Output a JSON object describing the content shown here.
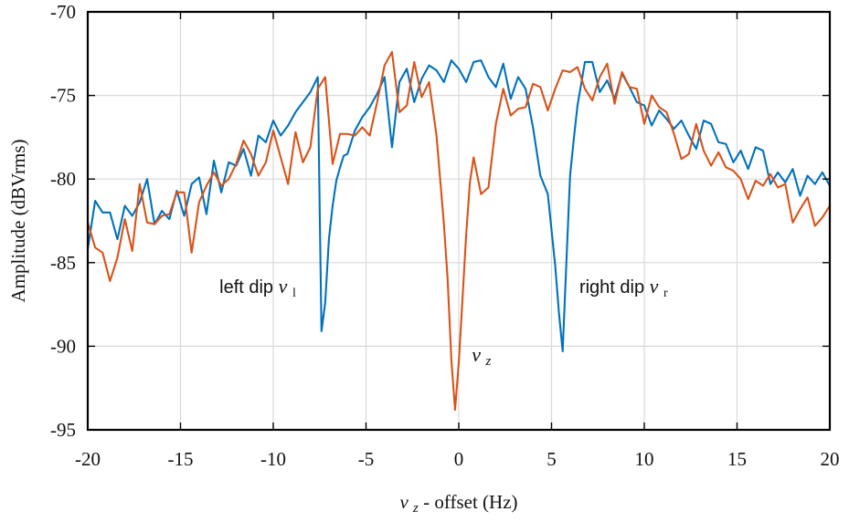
{
  "chart_data": {
    "type": "line",
    "title": "",
    "xlabel": {
      "main": "ν",
      "sub": "z",
      "suffix": " - offset (Hz)"
    },
    "ylabel": "Amplitude (dBVrms)",
    "xlim": [
      -20,
      20
    ],
    "ylim": [
      -95,
      -70
    ],
    "grid": true,
    "legend": "none",
    "x_ticks": [
      "-20",
      "-15",
      "-10",
      "-5",
      "0",
      "5",
      "10",
      "15",
      "20"
    ],
    "y_ticks": [
      "-70",
      "-75",
      "-80",
      "-85",
      "-90",
      "-95"
    ],
    "colors": {
      "blue": "#0072bd",
      "orange": "#d95319",
      "grid": "#d9d9d9",
      "axis": "#000000"
    },
    "annotations": {
      "left": {
        "text": "left dip ",
        "symbol": "ν",
        "sub": "l"
      },
      "center": {
        "symbol": "ν",
        "sub": "z"
      },
      "right": {
        "text": "right dip ",
        "symbol": "ν",
        "sub": "r"
      }
    },
    "series": [
      {
        "color": "#0072bd",
        "x": [
          -20,
          -19.6,
          -19.2,
          -18.8,
          -18.4,
          -18,
          -17.6,
          -17.2,
          -16.8,
          -16.4,
          -16,
          -15.6,
          -15.2,
          -14.8,
          -14.4,
          -14,
          -13.6,
          -13.2,
          -12.8,
          -12.4,
          -12,
          -11.6,
          -11.2,
          -10.8,
          -10.4,
          -10,
          -9.6,
          -9.2,
          -8.8,
          -8.4,
          -8,
          -7.6,
          -7.4,
          -7.2,
          -7.0,
          -6.8,
          -6.6,
          -6.4,
          -6.2,
          -6.0,
          -5.6,
          -5.2,
          -4.8,
          -4.4,
          -4.0,
          -3.6,
          -3.2,
          -2.8,
          -2.4,
          -2.0,
          -1.6,
          -1.2,
          -0.8,
          -0.4,
          0,
          0.4,
          0.8,
          1.2,
          1.6,
          2.0,
          2.4,
          2.8,
          3.2,
          3.6,
          4.0,
          4.4,
          4.8,
          5.2,
          5.4,
          5.6,
          5.8,
          6.0,
          6.2,
          6.4,
          6.8,
          7.2,
          7.6,
          8.0,
          8.4,
          8.8,
          9.2,
          9.6,
          10.0,
          10.4,
          10.8,
          11.2,
          11.6,
          12.0,
          12.4,
          12.8,
          13.2,
          13.6,
          14.0,
          14.4,
          14.8,
          15.2,
          15.6,
          16.0,
          16.4,
          16.8,
          17.2,
          17.6,
          18.0,
          18.4,
          18.8,
          19.2,
          19.6,
          20
        ],
        "y": [
          -84.2,
          -81.3,
          -82.0,
          -82.0,
          -83.6,
          -81.6,
          -82.2,
          -81.4,
          -80.0,
          -82.7,
          -81.9,
          -82.4,
          -80.7,
          -82.2,
          -80.3,
          -79.9,
          -82.1,
          -78.9,
          -80.8,
          -79.0,
          -79.2,
          -78.2,
          -79.8,
          -77.4,
          -77.8,
          -76.5,
          -77.4,
          -76.8,
          -76.0,
          -75.4,
          -74.8,
          -73.9,
          -89.1,
          -87.4,
          -83.6,
          -81.6,
          -80.1,
          -79.3,
          -78.6,
          -78.5,
          -77.1,
          -76.3,
          -75.7,
          -74.9,
          -73.9,
          -78.1,
          -74.2,
          -73.4,
          -75.4,
          -74.0,
          -73.2,
          -73.5,
          -74.2,
          -72.9,
          -73.4,
          -74.2,
          -73.0,
          -72.9,
          -73.9,
          -74.5,
          -73.1,
          -75.2,
          -73.9,
          -74.6,
          -76.9,
          -79.8,
          -80.9,
          -85.2,
          -88.0,
          -90.3,
          -85.0,
          -79.8,
          -77.6,
          -75.6,
          -73.0,
          -73.0,
          -74.8,
          -74.1,
          -75.2,
          -73.7,
          -74.5,
          -75.4,
          -75.6,
          -76.8,
          -75.9,
          -76.4,
          -77.0,
          -76.5,
          -77.4,
          -78.2,
          -76.5,
          -76.7,
          -77.8,
          -77.9,
          -79.0,
          -78.3,
          -79.4,
          -78.1,
          -78.3,
          -80.3,
          -79.6,
          -80.2,
          -79.4,
          -81.0,
          -79.8,
          -80.3,
          -79.6,
          -80.4
        ]
      },
      {
        "color": "#d95319",
        "x": [
          -20,
          -19.6,
          -19.2,
          -18.8,
          -18.4,
          -18,
          -17.6,
          -17.2,
          -16.8,
          -16.4,
          -16,
          -15.6,
          -15.2,
          -14.8,
          -14.4,
          -14,
          -13.6,
          -13.2,
          -12.8,
          -12.4,
          -12,
          -11.6,
          -11.2,
          -10.8,
          -10.4,
          -10,
          -9.6,
          -9.2,
          -8.8,
          -8.4,
          -8,
          -7.6,
          -7.2,
          -6.8,
          -6.4,
          -6.0,
          -5.6,
          -5.2,
          -4.8,
          -4.4,
          -4.0,
          -3.6,
          -3.2,
          -2.8,
          -2.4,
          -2.0,
          -1.6,
          -1.2,
          -0.8,
          -0.6,
          -0.4,
          -0.2,
          0,
          0.2,
          0.4,
          0.6,
          0.8,
          1.2,
          1.6,
          2.0,
          2.4,
          2.8,
          3.2,
          3.6,
          4.0,
          4.4,
          4.8,
          5.2,
          5.6,
          6.0,
          6.4,
          6.8,
          7.2,
          7.6,
          8.0,
          8.4,
          8.8,
          9.2,
          9.6,
          10.0,
          10.4,
          10.8,
          11.2,
          11.6,
          12.0,
          12.4,
          12.8,
          13.2,
          13.6,
          14.0,
          14.4,
          14.8,
          15.2,
          15.6,
          16.0,
          16.4,
          16.8,
          17.2,
          17.6,
          18.0,
          18.4,
          18.8,
          19.2,
          19.6,
          20
        ],
        "y": [
          -82.6,
          -84.1,
          -84.4,
          -86.1,
          -84.7,
          -82.4,
          -84.3,
          -80.3,
          -82.6,
          -82.7,
          -82.2,
          -82.1,
          -80.8,
          -80.8,
          -84.4,
          -81.4,
          -80.4,
          -79.6,
          -80.4,
          -80.0,
          -79.1,
          -77.7,
          -78.5,
          -79.8,
          -79.0,
          -77.1,
          -78.7,
          -80.3,
          -77.2,
          -79.0,
          -78.1,
          -74.6,
          -73.9,
          -79.1,
          -77.3,
          -77.3,
          -77.4,
          -76.9,
          -77.4,
          -75.4,
          -73.2,
          -72.4,
          -76.0,
          -75.6,
          -73.0,
          -75.1,
          -74.2,
          -77.4,
          -82.7,
          -86.0,
          -90.8,
          -93.8,
          -91.0,
          -87.2,
          -83.3,
          -80.2,
          -78.7,
          -80.9,
          -80.5,
          -76.7,
          -74.6,
          -76.2,
          -75.8,
          -75.7,
          -74.3,
          -74.5,
          -75.9,
          -74.6,
          -73.5,
          -73.6,
          -73.3,
          -74.6,
          -75.3,
          -73.9,
          -73.1,
          -75.5,
          -73.6,
          -74.5,
          -74.6,
          -76.7,
          -75.0,
          -75.7,
          -76.0,
          -77.3,
          -78.8,
          -78.5,
          -76.7,
          -78.3,
          -79.2,
          -78.4,
          -79.3,
          -79.5,
          -80.0,
          -81.2,
          -80.1,
          -80.4,
          -79.7,
          -80.5,
          -80.3,
          -82.6,
          -81.8,
          -81.1,
          -82.8,
          -82.3,
          -81.6
        ]
      }
    ]
  }
}
